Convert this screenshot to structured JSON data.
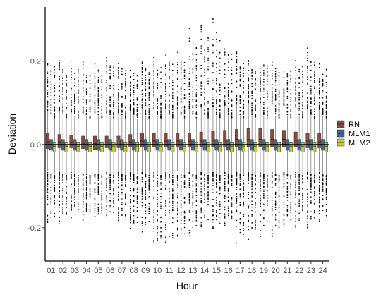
{
  "chart_data": {
    "type": "boxplot",
    "xlabel": "Hour",
    "ylabel": "Deviation",
    "categories": [
      "01",
      "02",
      "03",
      "04",
      "05",
      "06",
      "07",
      "08",
      "09",
      "10",
      "11",
      "12",
      "13",
      "14",
      "15",
      "16",
      "17",
      "18",
      "19",
      "20",
      "21",
      "22",
      "23",
      "24"
    ],
    "ylim": [
      -0.28,
      0.33
    ],
    "yticks": [
      -0.2,
      0.0,
      0.2
    ],
    "ytick_labels": [
      "-0.2",
      "0.0",
      "0.2"
    ],
    "reference_line": 0,
    "legend_position": "right",
    "grid": false,
    "series": [
      {
        "name": "RN",
        "color": "#8b4a3c",
        "q1": [
          -0.01,
          -0.008,
          -0.008,
          -0.01,
          -0.012,
          -0.008,
          -0.008,
          -0.006,
          -0.006,
          -0.006,
          -0.006,
          -0.006,
          -0.006,
          -0.006,
          -0.006,
          -0.006,
          -0.006,
          -0.006,
          -0.006,
          -0.006,
          -0.006,
          -0.006,
          -0.008,
          -0.008
        ],
        "median": [
          0.006,
          0.006,
          0.005,
          0.003,
          0.002,
          0.004,
          0.004,
          0.006,
          0.008,
          0.008,
          0.008,
          0.008,
          0.008,
          0.008,
          0.01,
          0.01,
          0.012,
          0.012,
          0.012,
          0.012,
          0.012,
          0.01,
          0.008,
          0.006
        ],
        "q3": [
          0.026,
          0.024,
          0.022,
          0.02,
          0.02,
          0.02,
          0.02,
          0.024,
          0.028,
          0.028,
          0.028,
          0.028,
          0.028,
          0.03,
          0.032,
          0.034,
          0.036,
          0.038,
          0.038,
          0.036,
          0.034,
          0.03,
          0.028,
          0.026
        ],
        "whisker_low": [
          -0.065,
          -0.065,
          -0.065,
          -0.068,
          -0.07,
          -0.065,
          -0.065,
          -0.065,
          -0.065,
          -0.065,
          -0.065,
          -0.065,
          -0.065,
          -0.065,
          -0.065,
          -0.065,
          -0.065,
          -0.065,
          -0.065,
          -0.065,
          -0.065,
          -0.065,
          -0.065,
          -0.065
        ],
        "whisker_high": [
          0.08,
          0.078,
          0.076,
          0.074,
          0.074,
          0.074,
          0.074,
          0.08,
          0.085,
          0.085,
          0.085,
          0.085,
          0.085,
          0.088,
          0.09,
          0.092,
          0.095,
          0.098,
          0.098,
          0.095,
          0.092,
          0.088,
          0.085,
          0.082
        ]
      },
      {
        "name": "MLM1",
        "color": "#3d6b8a",
        "q1": [
          -0.014,
          -0.014,
          -0.014,
          -0.014,
          -0.014,
          -0.014,
          -0.014,
          -0.014,
          -0.014,
          -0.014,
          -0.014,
          -0.014,
          -0.014,
          -0.014,
          -0.014,
          -0.014,
          -0.014,
          -0.014,
          -0.014,
          -0.014,
          -0.014,
          -0.014,
          -0.014,
          -0.014
        ],
        "median": [
          0.0,
          0.0,
          0.0,
          0.0,
          0.0,
          0.0,
          0.0,
          0.0,
          0.0,
          0.0,
          0.0,
          0.0,
          0.0,
          0.0,
          0.0,
          0.0,
          0.0,
          0.0,
          0.0,
          0.0,
          0.0,
          0.0,
          0.0,
          0.0
        ],
        "q3": [
          0.012,
          0.012,
          0.012,
          0.012,
          0.012,
          0.012,
          0.012,
          0.012,
          0.012,
          0.012,
          0.012,
          0.012,
          0.012,
          0.012,
          0.012,
          0.012,
          0.012,
          0.012,
          0.012,
          0.012,
          0.012,
          0.012,
          0.012,
          0.012
        ],
        "whisker_low": [
          -0.07,
          -0.07,
          -0.07,
          -0.07,
          -0.07,
          -0.07,
          -0.07,
          -0.07,
          -0.07,
          -0.07,
          -0.07,
          -0.07,
          -0.07,
          -0.07,
          -0.07,
          -0.07,
          -0.07,
          -0.07,
          -0.07,
          -0.07,
          -0.07,
          -0.07,
          -0.07,
          -0.07
        ],
        "whisker_high": [
          0.07,
          0.07,
          0.07,
          0.07,
          0.07,
          0.07,
          0.07,
          0.07,
          0.07,
          0.07,
          0.07,
          0.07,
          0.07,
          0.07,
          0.07,
          0.07,
          0.07,
          0.07,
          0.07,
          0.07,
          0.07,
          0.07,
          0.07,
          0.07
        ]
      },
      {
        "name": "MLM2",
        "color": "#c9cd1e",
        "q1": [
          -0.018,
          -0.018,
          -0.018,
          -0.018,
          -0.018,
          -0.018,
          -0.018,
          -0.018,
          -0.018,
          -0.018,
          -0.018,
          -0.018,
          -0.018,
          -0.018,
          -0.018,
          -0.018,
          -0.018,
          -0.018,
          -0.018,
          -0.018,
          -0.018,
          -0.018,
          -0.018,
          -0.018
        ],
        "median": [
          -0.004,
          -0.004,
          -0.004,
          -0.004,
          -0.004,
          -0.004,
          -0.004,
          -0.004,
          -0.004,
          -0.004,
          -0.004,
          -0.004,
          -0.004,
          -0.004,
          -0.004,
          -0.004,
          -0.004,
          -0.004,
          -0.004,
          -0.004,
          -0.004,
          -0.004,
          -0.004,
          -0.004
        ],
        "q3": [
          0.006,
          0.006,
          0.006,
          0.006,
          0.006,
          0.006,
          0.006,
          0.006,
          0.006,
          0.006,
          0.006,
          0.006,
          0.006,
          0.006,
          0.006,
          0.006,
          0.006,
          0.006,
          0.006,
          0.006,
          0.006,
          0.006,
          0.006,
          0.006
        ],
        "whisker_low": [
          -0.072,
          -0.072,
          -0.072,
          -0.072,
          -0.072,
          -0.072,
          -0.072,
          -0.072,
          -0.072,
          -0.072,
          -0.072,
          -0.072,
          -0.072,
          -0.072,
          -0.072,
          -0.072,
          -0.072,
          -0.072,
          -0.072,
          -0.072,
          -0.072,
          -0.072,
          -0.072,
          -0.072
        ],
        "whisker_high": [
          0.062,
          0.062,
          0.062,
          0.062,
          0.062,
          0.062,
          0.062,
          0.062,
          0.062,
          0.062,
          0.062,
          0.062,
          0.062,
          0.062,
          0.062,
          0.062,
          0.062,
          0.062,
          0.062,
          0.062,
          0.062,
          0.062,
          0.062,
          0.062
        ]
      }
    ],
    "outlier_range_low": [
      -0.2,
      -0.19,
      -0.18,
      -0.18,
      -0.19,
      -0.18,
      -0.19,
      -0.21,
      -0.22,
      -0.26,
      -0.25,
      -0.24,
      -0.22,
      -0.2,
      -0.21,
      -0.2,
      -0.24,
      -0.23,
      -0.23,
      -0.22,
      -0.2,
      -0.2,
      -0.2,
      -0.19
    ],
    "outlier_range_high": [
      0.21,
      0.2,
      0.2,
      0.2,
      0.2,
      0.21,
      0.2,
      0.19,
      0.2,
      0.21,
      0.22,
      0.22,
      0.28,
      0.29,
      0.31,
      0.25,
      0.22,
      0.2,
      0.21,
      0.2,
      0.2,
      0.21,
      0.23,
      0.2
    ]
  }
}
